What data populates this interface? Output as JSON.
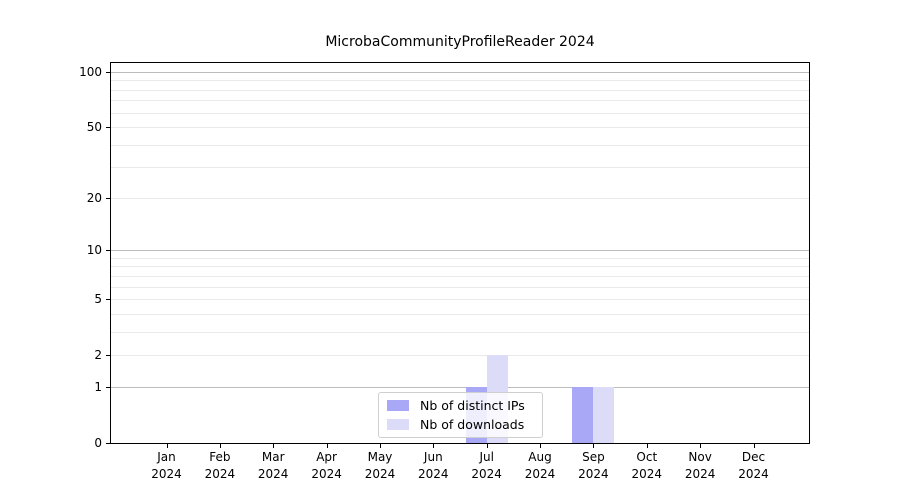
{
  "chart_data": {
    "type": "bar",
    "title": "MicrobaCommunityProfileReader 2024",
    "categories": [
      "Jan",
      "Feb",
      "Mar",
      "Apr",
      "May",
      "Jun",
      "Jul",
      "Aug",
      "Sep",
      "Oct",
      "Nov",
      "Dec"
    ],
    "category_year": "2024",
    "series": [
      {
        "name": "Nb of distinct IPs",
        "color": "#a8a8f6",
        "values": [
          0,
          0,
          0,
          0,
          0,
          0,
          1,
          0,
          1,
          0,
          0,
          0
        ]
      },
      {
        "name": "Nb of downloads",
        "color": "#dcdcf8",
        "values": [
          0,
          0,
          0,
          0,
          0,
          0,
          2,
          0,
          1,
          0,
          0,
          0
        ]
      }
    ],
    "xlabel": "",
    "ylabel": "",
    "yscale": "log1p",
    "ylim": [
      0,
      112
    ],
    "yticks": [
      0,
      1,
      2,
      5,
      10,
      20,
      50,
      100
    ],
    "grid_major": [
      1,
      10,
      100
    ],
    "grid_minor": [
      2,
      3,
      4,
      5,
      6,
      7,
      8,
      9,
      20,
      30,
      40,
      50,
      60,
      70,
      80,
      90
    ],
    "grid": "on",
    "legend_position": "lower center",
    "colors": {
      "major_grid": "#bcbcbc",
      "minor_grid": "#e9e9e9",
      "spine": "#000000",
      "text": "#000000",
      "background": "#ffffff"
    }
  }
}
